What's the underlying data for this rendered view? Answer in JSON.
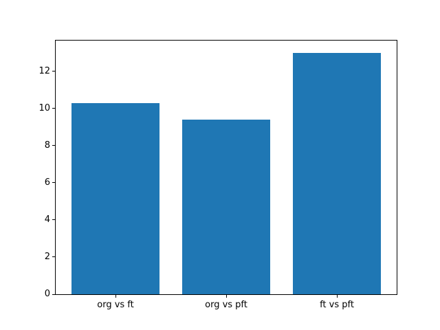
{
  "figure": {
    "background": "#ffffff"
  },
  "chart_data": {
    "type": "bar",
    "categories": [
      "org vs ft",
      "org vs pft",
      "ft vs pft"
    ],
    "values": [
      10.3,
      9.4,
      13.0
    ],
    "title": "",
    "xlabel": "",
    "ylabel": "",
    "ylim": [
      0,
      13.65
    ],
    "yticks": [
      0,
      2,
      4,
      6,
      8,
      10,
      12
    ],
    "xlim": [
      -0.54,
      2.54
    ],
    "bar_width": 0.8,
    "bar_color": "#1f77b4",
    "axis_color": "#000000",
    "grid": false,
    "legend_position": "none"
  }
}
